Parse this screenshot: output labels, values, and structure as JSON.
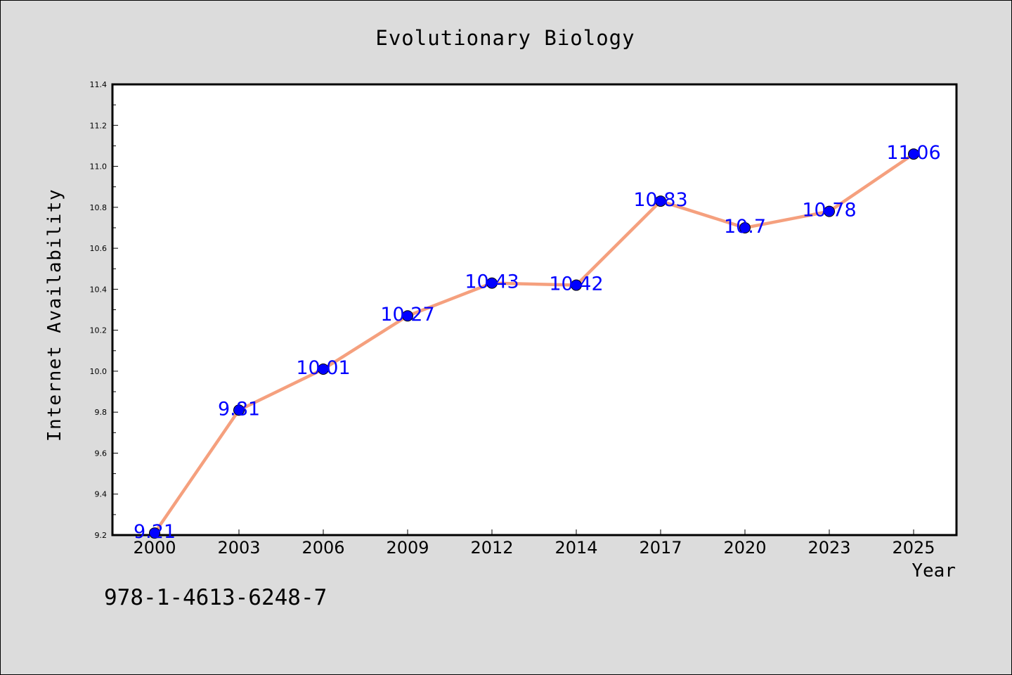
{
  "chart_data": {
    "type": "line",
    "title": "Evolutionary Biology",
    "xlabel": "Year",
    "ylabel": "Internet Availability",
    "categories": [
      "2000",
      "2003",
      "2006",
      "2009",
      "2012",
      "2014",
      "2017",
      "2020",
      "2023",
      "2025"
    ],
    "series": [
      {
        "values": [
          9.21,
          9.81,
          10.01,
          10.27,
          10.43,
          10.42,
          10.83,
          10.7,
          10.78,
          11.06
        ],
        "data_labels": [
          "9.21",
          "9.81",
          "10.01",
          "10.27",
          "10.43",
          "10.42",
          "10.83",
          "10.7",
          "10.78",
          "11.06"
        ],
        "line_color": "#f5a07e",
        "marker_color": "#0000ff"
      }
    ],
    "ylim": [
      9.2,
      11.4
    ],
    "yticks": [
      "9.2",
      "9.4",
      "9.6",
      "9.8",
      "10.0",
      "10.2",
      "10.4",
      "10.6",
      "10.8",
      "11.0",
      "11.2",
      "11.4"
    ],
    "grid": false,
    "legend": "none"
  },
  "footer": {
    "isbn": "978-1-4613-6248-7"
  },
  "colors": {
    "background": "#dcdcdc",
    "plot_area": "#ffffff",
    "label_color": "#0000ff"
  }
}
